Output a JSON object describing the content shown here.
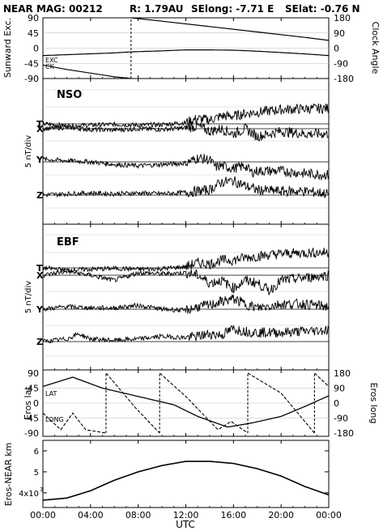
{
  "header": {
    "title": "NEAR MAG: 00212",
    "distance": "R: 1.79AU",
    "selong": "SElong:   -7.71 E",
    "selat": "SElat:   -0.76 N"
  },
  "panel1": {
    "left_label": "Sunward Exc.",
    "right_label": "Clock Angle",
    "left_ticks": [
      "90",
      "45",
      "0",
      "-45",
      "-90"
    ],
    "right_ticks": [
      "180",
      "90",
      "0",
      "-90",
      "-180"
    ],
    "tag_exc": "EXC",
    "tag_ck": "CK"
  },
  "panel2": {
    "name": "NSO",
    "ylabel": "5 nT/div",
    "traces": [
      "T",
      "X",
      "Y",
      "Z"
    ]
  },
  "panel3": {
    "name": "EBF",
    "ylabel": "5 nT/div",
    "traces": [
      "T",
      "X",
      "Y",
      "Z"
    ]
  },
  "panel4": {
    "left_label": "Eros lat",
    "right_label": "Eros long",
    "left_ticks": [
      "90",
      "45",
      "0",
      "-45",
      "-90"
    ],
    "right_ticks": [
      "180",
      "90",
      "0",
      "-90",
      "-180"
    ],
    "tag_lat": "LAT",
    "tag_long": "LONG"
  },
  "panel5": {
    "left_label": "Eros-NEAR km",
    "ticks": [
      "6",
      "5",
      "4x10"
    ],
    "tick_exp": "3"
  },
  "xaxis": {
    "label": "UTC",
    "ticks": [
      "00:00",
      "04:00",
      "08:00",
      "12:00",
      "16:00",
      "20:00",
      "00:00"
    ]
  },
  "chart_data": [
    {
      "type": "line",
      "title": "",
      "x_unit": "hours UTC",
      "xlim": [
        0,
        24
      ],
      "ylim": [
        -90,
        90
      ],
      "ylim_right": [
        -180,
        180
      ],
      "series": [
        {
          "name": "EXC",
          "x": [
            0,
            3,
            6,
            7.4,
            10,
            12,
            14,
            16,
            18,
            20,
            22,
            24
          ],
          "y": [
            -22,
            -18,
            -14,
            -11,
            -8,
            -5,
            -5,
            -6,
            -9,
            -13,
            -17,
            -22
          ]
        },
        {
          "name": "CK",
          "axis": "right",
          "x": [
            0,
            2,
            4,
            6,
            7.39,
            7.41,
            10,
            14,
            18,
            22,
            24
          ],
          "y": [
            -100,
            -126,
            -148,
            -170,
            -180,
            180,
            160,
            128,
            96,
            64,
            46
          ]
        }
      ]
    },
    {
      "type": "line",
      "title": "NSO",
      "ylabel": "5 nT/div",
      "xlim": [
        0,
        24
      ],
      "series": [
        {
          "name": "T",
          "x": [
            0,
            2,
            4,
            6,
            8,
            10,
            12,
            13,
            14,
            15,
            16,
            17,
            18,
            20,
            22,
            24
          ],
          "y": [
            0,
            -0.8,
            -0.5,
            -0.2,
            -0.5,
            -0.3,
            0.5,
            2,
            1.5,
            3,
            3,
            4,
            4.5,
            5.5,
            5.8,
            6
          ]
        },
        {
          "name": "X",
          "x": [
            0,
            2,
            4,
            6,
            8,
            10,
            12,
            13,
            14,
            15,
            16,
            17,
            18,
            20,
            22,
            24
          ],
          "y": [
            0,
            0.5,
            -0.3,
            -0.5,
            0,
            -0.3,
            0.3,
            1,
            -1,
            0,
            -2,
            0,
            -3,
            -1,
            -2,
            -2
          ]
        },
        {
          "name": "Y",
          "x": [
            0,
            2,
            4,
            6,
            8,
            10,
            12,
            13,
            14,
            14.5,
            15,
            16,
            17,
            17.5,
            18,
            20,
            22,
            24
          ],
          "y": [
            1,
            0.5,
            0,
            -1,
            -1.5,
            -1,
            -0.5,
            1.5,
            0.8,
            -2,
            -1.5,
            -2.5,
            -1.5,
            -4,
            -3.5,
            -3.5,
            -4.5,
            -5
          ]
        },
        {
          "name": "Z",
          "x": [
            0,
            2,
            4,
            6,
            8,
            10,
            12,
            13,
            14,
            15,
            16,
            17,
            18,
            20,
            22,
            24
          ],
          "y": [
            0,
            0.5,
            0.8,
            0.5,
            0.8,
            0.5,
            1,
            1.5,
            2,
            5,
            5.5,
            3.5,
            2,
            1.5,
            1.5,
            0.5
          ]
        }
      ]
    },
    {
      "type": "line",
      "title": "EBF",
      "ylabel": "5 nT/div",
      "xlim": [
        0,
        24
      ],
      "series": [
        {
          "name": "T",
          "x": [
            0,
            2,
            4,
            6,
            8,
            10,
            12,
            13,
            14,
            15,
            16,
            17,
            18,
            20,
            22,
            24
          ],
          "y": [
            0,
            -0.8,
            -0.5,
            -0.2,
            -0.5,
            -0.3,
            0.5,
            2,
            1.5,
            3,
            3,
            4,
            4.5,
            5.5,
            5.8,
            6
          ]
        },
        {
          "name": "X",
          "x": [
            0,
            2,
            4,
            6,
            8,
            10,
            12,
            13,
            14,
            15,
            16,
            17,
            18,
            19,
            20,
            22,
            24
          ],
          "y": [
            0,
            1.5,
            0,
            -2,
            1,
            0.5,
            1,
            0,
            -3,
            -2,
            -5,
            -2,
            -3,
            -6,
            -2,
            -1,
            0
          ]
        },
        {
          "name": "Y",
          "x": [
            0,
            2,
            4,
            6,
            8,
            10,
            12,
            13,
            14,
            15,
            16,
            17,
            18,
            20,
            22,
            24
          ],
          "y": [
            0,
            1,
            0.5,
            0.5,
            1.5,
            0,
            -0.5,
            1,
            1.5,
            3,
            4,
            2,
            0.5,
            2,
            2,
            1
          ]
        },
        {
          "name": "Z",
          "x": [
            0,
            2,
            3,
            4,
            6,
            8,
            10,
            12,
            13,
            14,
            15,
            16,
            17,
            18,
            20,
            22,
            24
          ],
          "y": [
            0,
            1,
            3,
            1,
            0.5,
            1,
            2,
            1.5,
            2,
            3,
            2.5,
            5,
            4,
            3.5,
            3.5,
            4,
            4.5
          ]
        }
      ]
    },
    {
      "type": "line",
      "title": "",
      "xlim": [
        0,
        24
      ],
      "ylim": [
        -90,
        90
      ],
      "ylim_right": [
        -180,
        180
      ],
      "series": [
        {
          "name": "LAT",
          "x": [
            0,
            2.5,
            5,
            8,
            11,
            13,
            15.5,
            17.5,
            20,
            22,
            24
          ],
          "y": [
            50,
            78,
            45,
            20,
            -5,
            -40,
            -72,
            -60,
            -40,
            -10,
            22
          ]
        },
        {
          "name": "LONG",
          "axis": "right",
          "x": [
            0,
            1.5,
            2.5,
            3.6,
            5.3,
            5.31,
            7.8,
            9.8,
            9.81,
            12,
            14.7,
            15.8,
            17.2,
            17.21,
            20,
            22.8,
            22.81,
            24
          ],
          "y": [
            -60,
            -160,
            -60,
            -160,
            -180,
            180,
            -30,
            -180,
            180,
            40,
            -160,
            -110,
            -180,
            180,
            60,
            -180,
            180,
            100
          ]
        }
      ]
    },
    {
      "type": "line",
      "title": "",
      "ylabel": "Eros-NEAR km",
      "xlim": [
        0,
        24
      ],
      "ylim": [
        33,
        65
      ],
      "y_exponent": 3,
      "series": [
        {
          "name": "Eros-NEAR",
          "x": [
            0,
            2,
            4,
            6,
            8,
            10,
            12,
            14,
            16,
            18,
            20,
            22,
            24
          ],
          "y": [
            36.5,
            37.5,
            41,
            46,
            50,
            53,
            55,
            55,
            54,
            51.5,
            48,
            43,
            39
          ]
        }
      ]
    }
  ]
}
